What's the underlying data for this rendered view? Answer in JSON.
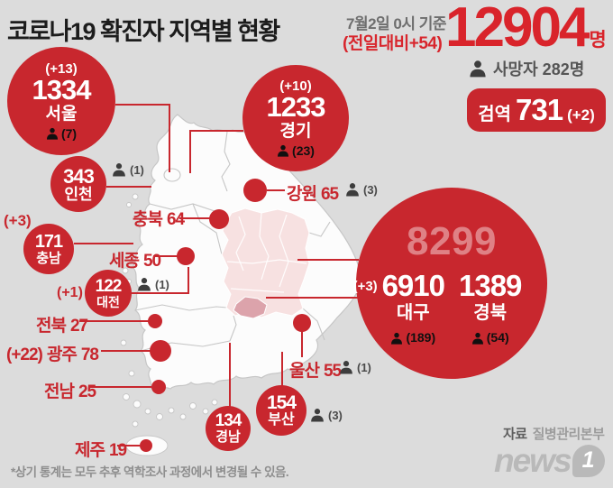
{
  "header": {
    "title": "코로나19 확진자 지역별 현황",
    "date": "7월2일 0시 기준",
    "daily_change": "(전일대비+54)",
    "total": "12904",
    "unit": "명",
    "deaths": "사망자 282명",
    "quarantine_label": "검역",
    "quarantine_value": "731",
    "quarantine_change": "(+2)"
  },
  "regions": {
    "seoul": {
      "delta": "(+13)",
      "value": "1334",
      "name": "서울",
      "deaths": "(7)"
    },
    "gyeonggi": {
      "delta": "(+10)",
      "value": "1233",
      "name": "경기",
      "deaths": "(23)"
    },
    "incheon": {
      "value": "343",
      "name": "인천",
      "deaths": "(1)"
    },
    "gangwon": {
      "name": "강원",
      "value": "65",
      "deaths": "(3)"
    },
    "chungbuk": {
      "name": "충북",
      "value": "64"
    },
    "chungnam": {
      "delta": "(+3)",
      "value": "171",
      "name": "충남"
    },
    "sejong": {
      "name": "세종",
      "value": "50"
    },
    "daejeon": {
      "delta": "(+1)",
      "value": "122",
      "name": "대전",
      "deaths": "(1)"
    },
    "jeonbuk": {
      "name": "전북",
      "value": "27"
    },
    "gwangju": {
      "delta": "(+22)",
      "name": "광주",
      "value": "78"
    },
    "jeonnam": {
      "name": "전남",
      "value": "25"
    },
    "jeju": {
      "name": "제주",
      "value": "19"
    },
    "ulsan": {
      "name": "울산",
      "value": "55",
      "deaths": "(1)"
    },
    "busan": {
      "value": "154",
      "name": "부산",
      "deaths": "(3)"
    },
    "gyeongnam": {
      "value": "134",
      "name": "경남"
    },
    "daegu_gyeongbuk_total": "8299",
    "daegu": {
      "delta": "(+3)",
      "value": "6910",
      "name": "대구",
      "deaths": "(189)"
    },
    "gyeongbuk": {
      "value": "1389",
      "name": "경북",
      "deaths": "(54)"
    }
  },
  "footer": {
    "note": "*상기 통계는 모두 추후 역학조사 과정에서 변경될 수 있음.",
    "source_label": "자료",
    "source_value": "질병관리본부",
    "logo_text": "news",
    "logo_digit": "1"
  },
  "colors": {
    "accent_red": "#c8272e",
    "total_red": "#d9242b",
    "background": "#dcdcdc",
    "map_fill": "#fcfcfc",
    "map_border": "#c6c6c6",
    "gyeongbuk_pink": "#f7e1e1",
    "daegu_pink": "#dca3ab"
  },
  "chart_data": {
    "type": "map",
    "title": "코로나19 확진자 지역별 현황",
    "as_of": "7월2일 0시 기준",
    "total_confirmed": 12904,
    "total_daily_change": 54,
    "total_deaths": 282,
    "quarantine_cases": 731,
    "quarantine_change": 2,
    "daegu_gyeongbuk_combined": 8299,
    "regions": [
      {
        "name": "서울",
        "confirmed": 1334,
        "change": 13,
        "deaths": 7
      },
      {
        "name": "경기",
        "confirmed": 1233,
        "change": 10,
        "deaths": 23
      },
      {
        "name": "인천",
        "confirmed": 343,
        "deaths": 1
      },
      {
        "name": "강원",
        "confirmed": 65,
        "deaths": 3
      },
      {
        "name": "충북",
        "confirmed": 64
      },
      {
        "name": "충남",
        "confirmed": 171,
        "change": 3
      },
      {
        "name": "세종",
        "confirmed": 50
      },
      {
        "name": "대전",
        "confirmed": 122,
        "change": 1,
        "deaths": 1
      },
      {
        "name": "전북",
        "confirmed": 27
      },
      {
        "name": "광주",
        "confirmed": 78,
        "change": 22
      },
      {
        "name": "전남",
        "confirmed": 25
      },
      {
        "name": "제주",
        "confirmed": 19
      },
      {
        "name": "대구",
        "confirmed": 6910,
        "change": 3,
        "deaths": 189
      },
      {
        "name": "경북",
        "confirmed": 1389,
        "deaths": 54
      },
      {
        "name": "울산",
        "confirmed": 55,
        "deaths": 1
      },
      {
        "name": "부산",
        "confirmed": 154,
        "deaths": 3
      },
      {
        "name": "경남",
        "confirmed": 134
      }
    ]
  }
}
